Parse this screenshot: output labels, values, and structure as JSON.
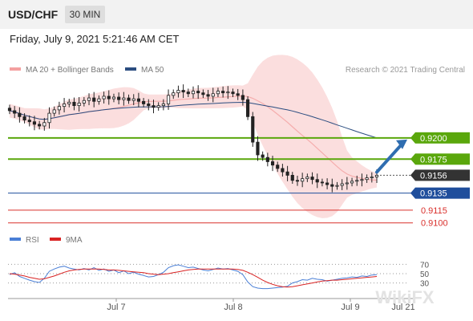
{
  "header": {
    "symbol": "USD/CHF",
    "timeframe": "30 MIN"
  },
  "datetime": "Friday, July 9, 2021 5:21:46 AM CET",
  "legend": {
    "bollinger": "MA 20 + Bollinger Bands",
    "ma50": "MA 50",
    "credit": "Research © 2021 Trading Central"
  },
  "colors": {
    "resistance": "#5aa70c",
    "support": "#1f4e9c",
    "target": "#d9302c",
    "current": "#333333",
    "bollinger": "#f4a0a0",
    "ma50": "#2b4d80",
    "rsi": "#4a7fd6",
    "rsi_ma": "#d92323",
    "arrow": "#2f6db0"
  },
  "chart_data": [
    {
      "type": "line",
      "subtype": "candlestick",
      "title": "USD/CHF",
      "x_labels": [
        "Jul 7",
        "Jul 8",
        "Jul 9",
        "Jul 21"
      ],
      "ylim": [
        0.9095,
        0.9265
      ],
      "close": [
        0.9232,
        0.9229,
        0.9225,
        0.9221,
        0.9219,
        0.9216,
        0.9214,
        0.9218,
        0.9229,
        0.9233,
        0.9237,
        0.924,
        0.9242,
        0.9238,
        0.9241,
        0.9244,
        0.9247,
        0.9243,
        0.9246,
        0.9249,
        0.9246,
        0.9248,
        0.9245,
        0.9247,
        0.9244,
        0.9246,
        0.9243,
        0.924,
        0.9238,
        0.9236,
        0.9238,
        0.924,
        0.925,
        0.9253,
        0.9256,
        0.9254,
        0.9252,
        0.9255,
        0.9253,
        0.9251,
        0.9249,
        0.9252,
        0.9255,
        0.9253,
        0.9254,
        0.9252,
        0.925,
        0.9245,
        0.9225,
        0.9195,
        0.918,
        0.9177,
        0.9172,
        0.9168,
        0.9164,
        0.916,
        0.9156,
        0.915,
        0.9149,
        0.9152,
        0.9154,
        0.9151,
        0.9148,
        0.9147,
        0.9145,
        0.9143,
        0.9144,
        0.9146,
        0.9147,
        0.9149,
        0.915,
        0.9151,
        0.9153,
        0.9154,
        0.9156
      ],
      "levels": [
        {
          "value": 0.92,
          "label": "0.9200",
          "kind": "resistance"
        },
        {
          "value": 0.9175,
          "label": "0.9175",
          "kind": "resistance"
        },
        {
          "value": 0.9156,
          "label": "0.9156",
          "kind": "current"
        },
        {
          "value": 0.9135,
          "label": "0.9135",
          "kind": "support"
        },
        {
          "value": 0.9115,
          "label": "0.9115",
          "kind": "target"
        },
        {
          "value": 0.91,
          "label": "0.9100",
          "kind": "target"
        }
      ],
      "series": [
        {
          "name": "MA 20 + Bollinger Bands"
        },
        {
          "name": "MA 50"
        }
      ],
      "forecast_arrow": {
        "from": 0.9156,
        "to": 0.92,
        "direction": "up"
      }
    },
    {
      "type": "line",
      "title": "RSI",
      "ylim": [
        0,
        100
      ],
      "y_ticks": [
        30,
        50,
        70
      ],
      "series": [
        {
          "name": "RSI",
          "values": [
            48,
            52,
            44,
            40,
            36,
            33,
            31,
            40,
            55,
            60,
            64,
            66,
            62,
            60,
            58,
            61,
            58,
            63,
            57,
            60,
            55,
            58,
            52,
            56,
            50,
            53,
            49,
            46,
            43,
            44,
            48,
            53,
            63,
            67,
            69,
            66,
            63,
            64,
            61,
            58,
            56,
            59,
            62,
            60,
            61,
            58,
            55,
            48,
            32,
            22,
            19,
            18,
            18,
            19,
            20,
            21,
            23,
            30,
            33,
            37,
            36,
            40,
            38,
            37,
            34,
            36,
            38,
            40,
            41,
            43,
            42,
            45,
            44,
            47,
            48
          ]
        },
        {
          "name": "9MA",
          "values": [
            50,
            49,
            47,
            45,
            42,
            40,
            38,
            39,
            42,
            45,
            49,
            53,
            56,
            58,
            59,
            60,
            60,
            60,
            60,
            59,
            58,
            58,
            57,
            56,
            55,
            54,
            53,
            52,
            50,
            49,
            48,
            49,
            50,
            52,
            54,
            56,
            58,
            59,
            60,
            60,
            60,
            60,
            60,
            60,
            60,
            60,
            59,
            57,
            53,
            48,
            42,
            36,
            31,
            27,
            24,
            22,
            21,
            22,
            24,
            26,
            28,
            30,
            32,
            34,
            35,
            36,
            36,
            37,
            38,
            39,
            40,
            41,
            42,
            43,
            44
          ]
        }
      ]
    }
  ]
}
